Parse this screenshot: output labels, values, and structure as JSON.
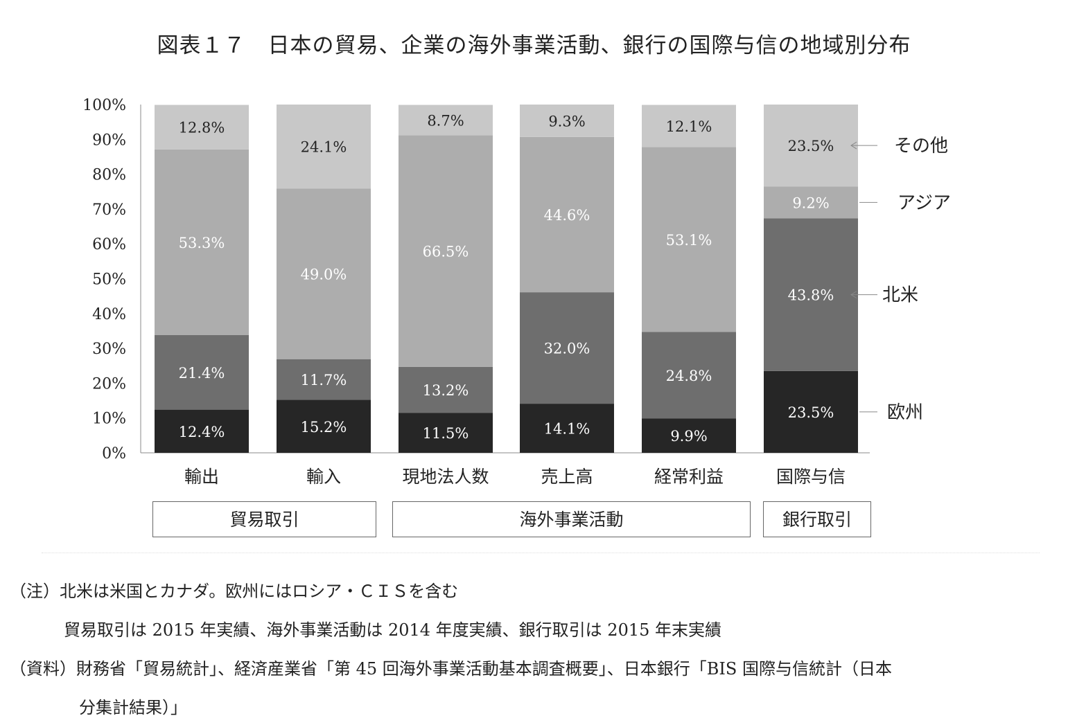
{
  "title": "図表１７　日本の貿易、企業の海外事業活動、銀行の国際与信の地域別分布",
  "chart_data": {
    "type": "bar",
    "stacked": true,
    "categories": [
      "輸出",
      "輸入",
      "現地法人数",
      "売上高",
      "経常利益",
      "国際与信"
    ],
    "series": [
      {
        "name": "欧州",
        "values": [
          12.4,
          15.2,
          11.5,
          14.1,
          9.9,
          23.5
        ],
        "color": "#262626",
        "labels": [
          "12.4%",
          "15.2%",
          "11.5%",
          "14.1%",
          "9.9%",
          "23.5%"
        ]
      },
      {
        "name": "北米",
        "values": [
          21.4,
          11.7,
          13.2,
          32.0,
          24.8,
          43.8
        ],
        "color": "#6e6e6e",
        "labels": [
          "21.4%",
          "11.7%",
          "13.2%",
          "32.0%",
          "24.8%",
          "43.8%"
        ]
      },
      {
        "name": "アジア",
        "values": [
          53.3,
          49.0,
          66.5,
          44.6,
          53.1,
          9.2
        ],
        "color": "#adadad",
        "labels": [
          "53.3%",
          "49.0%",
          "66.5%",
          "44.6%",
          "53.1%",
          "9.2%"
        ]
      },
      {
        "name": "その他",
        "values": [
          12.8,
          24.1,
          8.7,
          9.3,
          12.1,
          23.5
        ],
        "color": "#c8c8c8",
        "labels": [
          "12.8%",
          "24.1%",
          "8.7%",
          "9.3%",
          "12.1%",
          "23.5%"
        ]
      }
    ],
    "y_ticks": [
      "0%",
      "10%",
      "20%",
      "30%",
      "40%",
      "50%",
      "60%",
      "70%",
      "80%",
      "90%",
      "100%"
    ],
    "ylim": [
      0,
      100
    ],
    "legend_position": "right",
    "groups": [
      {
        "label": "貿易取引",
        "categories": [
          "輸出",
          "輸入"
        ]
      },
      {
        "label": "海外事業活動",
        "categories": [
          "現地法人数",
          "売上高",
          "経常利益"
        ]
      },
      {
        "label": "銀行取引",
        "categories": [
          "国際与信"
        ]
      }
    ]
  },
  "notes": {
    "line1": "（注）北米は米国とカナダ。欧州にはロシア・ＣＩＳを含む",
    "line2": "貿易取引は 2015 年実績、海外事業活動は 2014 年度実績、銀行取引は 2015 年末実績",
    "line3": "（資料）財務省「貿易統計」、経済産業省「第 45 回海外事業活動基本調査概要」、日本銀行「BIS 国際与信統計（日本",
    "line4": "分集計結果）」"
  }
}
